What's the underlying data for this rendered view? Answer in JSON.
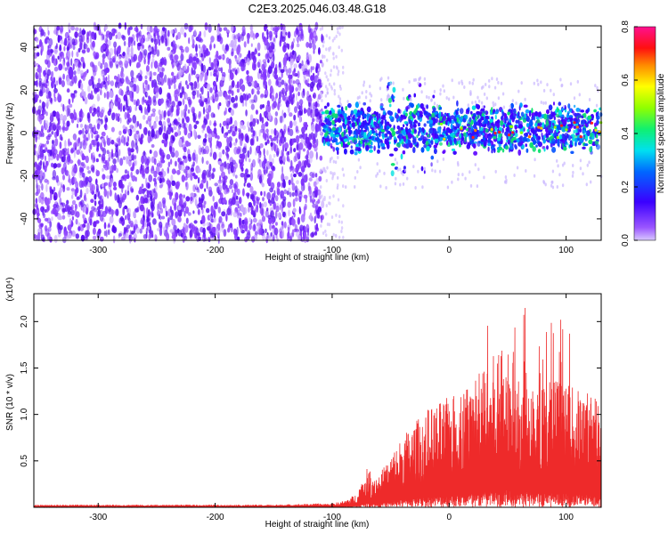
{
  "title": "C2E3.2025.046.03.48.G18",
  "colors": {
    "snr_line": "#ee2a2a",
    "spec_bg_points": "#7a2cff",
    "axis": "#000000"
  },
  "chart_data": [
    {
      "type": "heatmap",
      "title": "C2E3.2025.046.03.48.G18",
      "xlabel": "Height of straight line (km)",
      "ylabel": "Frequency (Hz)",
      "xlim": [
        -355,
        130
      ],
      "ylim": [
        -50,
        50
      ],
      "xticks": [
        -300,
        -200,
        -100,
        0,
        100
      ],
      "yticks": [
        -40,
        -20,
        0,
        20,
        40
      ],
      "colorbar": {
        "label": "Normalized spectral amplitude",
        "range": [
          0.0,
          0.8
        ],
        "ticks": [
          0.0,
          0.2,
          0.4,
          0.6,
          0.8
        ],
        "colormap": "rainbow (violet-blue-cyan-green-yellow-red-magenta)"
      },
      "regions": [
        {
          "x_range": [
            -355,
            -108
          ],
          "freq_range": [
            -50,
            50
          ],
          "amplitude": "low (~0.05)",
          "pattern": "broadband noise"
        },
        {
          "x_range": [
            -108,
            130
          ],
          "freq_range": [
            -10,
            10
          ],
          "amplitude": "0.1–0.6, peaks ~0.7",
          "pattern": "signal band centered near 0 Hz"
        }
      ]
    },
    {
      "type": "line",
      "xlabel": "Height of straight line (km)",
      "ylabel": "SNR (10 * v/v)",
      "y_multiplier": "(x10⁴)",
      "xlim": [
        -355,
        130
      ],
      "ylim": [
        0,
        2.3
      ],
      "xticks": [
        -300,
        -200,
        -100,
        0,
        100
      ],
      "yticks": [
        0.5,
        1.0,
        1.5,
        2.0
      ],
      "series": [
        {
          "x": [
            -355,
            -300,
            -250,
            -200,
            -150,
            -110,
            -100,
            -90,
            -80,
            -75,
            -70,
            -60,
            -50,
            -40,
            -30,
            -20,
            -10,
            0,
            10,
            20,
            30,
            40,
            50,
            60,
            70,
            80,
            90,
            100,
            110,
            120,
            130
          ],
          "y": [
            0.02,
            0.02,
            0.02,
            0.02,
            0.02,
            0.03,
            0.03,
            0.05,
            0.1,
            0.2,
            0.3,
            0.25,
            0.4,
            0.55,
            0.65,
            0.75,
            0.8,
            0.85,
            0.9,
            1.0,
            1.05,
            1.2,
            1.25,
            1.15,
            1.1,
            1.05,
            1.0,
            0.95,
            0.9,
            0.9,
            0.85
          ]
        }
      ]
    }
  ]
}
